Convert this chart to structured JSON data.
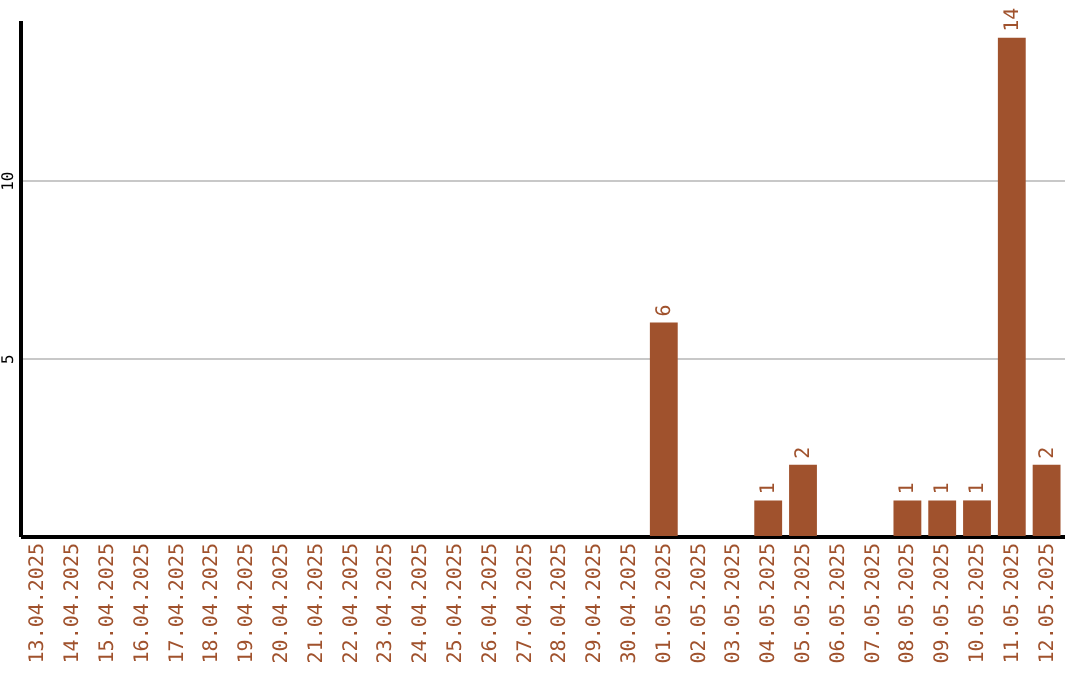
{
  "chart_data": {
    "type": "bar",
    "categories": [
      "13.04.2025",
      "14.04.2025",
      "15.04.2025",
      "16.04.2025",
      "17.04.2025",
      "18.04.2025",
      "19.04.2025",
      "20.04.2025",
      "21.04.2025",
      "22.04.2025",
      "23.04.2025",
      "24.04.2025",
      "25.04.2025",
      "26.04.2025",
      "27.04.2025",
      "28.04.2025",
      "29.04.2025",
      "30.04.2025",
      "01.05.2025",
      "02.05.2025",
      "03.05.2025",
      "04.05.2025",
      "05.05.2025",
      "06.05.2025",
      "07.05.2025",
      "08.05.2025",
      "09.05.2025",
      "10.05.2025",
      "11.05.2025",
      "12.05.2025"
    ],
    "values": [
      null,
      null,
      null,
      null,
      null,
      null,
      null,
      null,
      null,
      null,
      null,
      null,
      null,
      null,
      null,
      null,
      null,
      null,
      6,
      null,
      null,
      1,
      2,
      null,
      null,
      1,
      1,
      1,
      14,
      2
    ],
    "color": "#a0522d",
    "ylim": [
      0,
      14.5
    ],
    "yticks": [
      5,
      10
    ],
    "grid": "y",
    "data_labels": true
  }
}
